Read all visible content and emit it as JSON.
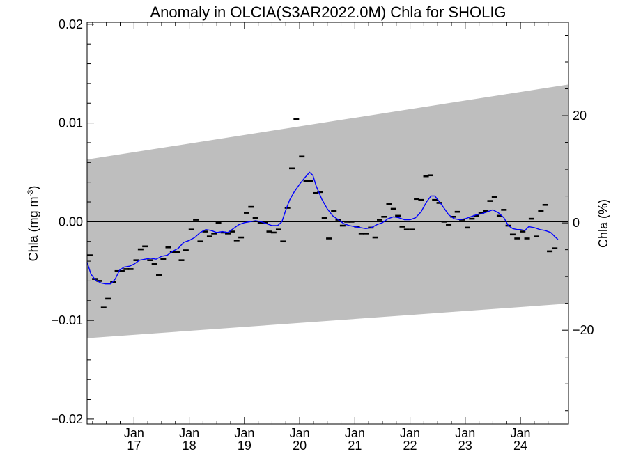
{
  "chart_data": {
    "type": "line",
    "title": "Anomaly in OLCIA(S3AR2022.0M) Chla for SHOLIG",
    "ylabel_left_main": "Chla (mg m",
    "ylabel_left_sup": "-3",
    "ylabel_left_close": ")",
    "ylabel_right": "Chla (%)",
    "xlim": [
      2016.15,
      2024.87
    ],
    "ylim": [
      -0.0205,
      0.0202
    ],
    "yticks": [
      -0.02,
      -0.01,
      0.0,
      0.01,
      0.02
    ],
    "ytick_labels": [
      "−0.02",
      "−0.01",
      "0.00",
      "0.01",
      "0.02"
    ],
    "yminor_step": 0.002,
    "right_axis_range": [
      -37.5,
      37.4
    ],
    "right_ticks": [
      -20,
      0,
      20
    ],
    "right_tick_labels": [
      "−20",
      "0",
      "20"
    ],
    "xticks": [
      {
        "x": 2017,
        "top": "Jan",
        "bottom": "17"
      },
      {
        "x": 2018,
        "top": "Jan",
        "bottom": "18"
      },
      {
        "x": 2019,
        "top": "Jan",
        "bottom": "19"
      },
      {
        "x": 2020,
        "top": "Jan",
        "bottom": "20"
      },
      {
        "x": 2021,
        "top": "Jan",
        "bottom": "21"
      },
      {
        "x": 2022,
        "top": "Jan",
        "bottom": "22"
      },
      {
        "x": 2023,
        "top": "Jan",
        "bottom": "23"
      },
      {
        "x": 2024,
        "top": "Jan",
        "bottom": "24"
      }
    ],
    "band": {
      "x": [
        2016.15,
        2024.87
      ],
      "upper": [
        0.0063,
        0.0139
      ],
      "lower": [
        -0.0118,
        -0.0083
      ],
      "color": "#bebebe"
    },
    "zero_line": 0.0,
    "series": [
      {
        "kind": "monthly",
        "color": "#000000",
        "points": [
          [
            2016.2,
            -0.0034
          ],
          [
            2016.29,
            -0.0058
          ],
          [
            2016.37,
            -0.006
          ],
          [
            2016.45,
            -0.0087
          ],
          [
            2016.53,
            -0.0078
          ],
          [
            2016.62,
            -0.0061
          ],
          [
            2016.7,
            -0.005
          ],
          [
            2016.78,
            -0.005
          ],
          [
            2016.86,
            -0.0048
          ],
          [
            2016.94,
            -0.0048
          ],
          [
            2017.04,
            -0.0039
          ],
          [
            2017.12,
            -0.0028
          ],
          [
            2017.2,
            -0.0025
          ],
          [
            2017.29,
            -0.0039
          ],
          [
            2017.37,
            -0.0043
          ],
          [
            2017.45,
            -0.0054
          ],
          [
            2017.53,
            -0.0038
          ],
          [
            2017.62,
            -0.0026
          ],
          [
            2017.7,
            -0.0031
          ],
          [
            2017.78,
            -0.0031
          ],
          [
            2017.86,
            -0.0039
          ],
          [
            2017.94,
            -0.0029
          ],
          [
            2018.04,
            -0.0008
          ],
          [
            2018.12,
            0.0002
          ],
          [
            2018.2,
            -0.002
          ],
          [
            2018.29,
            -0.001
          ],
          [
            2018.37,
            -0.0015
          ],
          [
            2018.45,
            -0.0012
          ],
          [
            2018.53,
            -0.0001
          ],
          [
            2018.62,
            -0.0011
          ],
          [
            2018.7,
            -0.0012
          ],
          [
            2018.78,
            -0.001
          ],
          [
            2018.86,
            -0.0019
          ],
          [
            2018.94,
            -0.0016
          ],
          [
            2019.04,
            0.0009
          ],
          [
            2019.12,
            0.0015
          ],
          [
            2019.2,
            0.0004
          ],
          [
            2019.29,
            -0.0001
          ],
          [
            2019.37,
            -0.0001
          ],
          [
            2019.45,
            -0.001
          ],
          [
            2019.53,
            -0.0011
          ],
          [
            2019.62,
            -0.0008
          ],
          [
            2019.7,
            -0.002
          ],
          [
            2019.78,
            0.0014
          ],
          [
            2019.86,
            0.0054
          ],
          [
            2019.94,
            0.0104
          ],
          [
            2020.04,
            0.0066
          ],
          [
            2020.12,
            0.0041
          ],
          [
            2020.2,
            0.0041
          ],
          [
            2020.29,
            0.0029
          ],
          [
            2020.37,
            0.003
          ],
          [
            2020.45,
            0.0004
          ],
          [
            2020.53,
            -0.0017
          ],
          [
            2020.62,
            0.0011
          ],
          [
            2020.7,
            0.0002
          ],
          [
            2020.78,
            -0.0004
          ],
          [
            2020.86,
            0.0
          ],
          [
            2020.94,
            0.0
          ],
          [
            2021.04,
            -0.0005
          ],
          [
            2021.12,
            -0.0012
          ],
          [
            2021.2,
            -0.0012
          ],
          [
            2021.29,
            -0.0006
          ],
          [
            2021.37,
            -0.0016
          ],
          [
            2021.45,
            0.0002
          ],
          [
            2021.53,
            0.0005
          ],
          [
            2021.62,
            0.0018
          ],
          [
            2021.7,
            0.0013
          ],
          [
            2021.78,
            0.0006
          ],
          [
            2021.86,
            -0.0005
          ],
          [
            2021.94,
            -0.0008
          ],
          [
            2022.04,
            -0.0008
          ],
          [
            2022.12,
            0.0023
          ],
          [
            2022.2,
            0.0022
          ],
          [
            2022.29,
            0.0046
          ],
          [
            2022.37,
            0.0047
          ],
          [
            2022.45,
            0.0022
          ],
          [
            2022.53,
            0.0019
          ],
          [
            2022.62,
            0.0
          ],
          [
            2022.7,
            -0.0003
          ],
          [
            2022.78,
            0.0005
          ],
          [
            2022.86,
            0.001
          ],
          [
            2022.94,
            0.0002
          ],
          [
            2023.04,
            -0.0006
          ],
          [
            2023.12,
            0.0003
          ],
          [
            2023.2,
            0.0006
          ],
          [
            2023.29,
            0.0009
          ],
          [
            2023.37,
            0.0011
          ],
          [
            2023.45,
            0.0021
          ],
          [
            2023.53,
            0.0025
          ],
          [
            2023.62,
            0.0006
          ],
          [
            2023.7,
            0.0012
          ],
          [
            2023.78,
            -0.0004
          ],
          [
            2023.86,
            -0.0013
          ],
          [
            2023.94,
            -0.0017
          ],
          [
            2024.04,
            -0.001
          ],
          [
            2024.12,
            -0.0017
          ],
          [
            2024.2,
            0.0003
          ],
          [
            2024.29,
            -0.0015
          ],
          [
            2024.37,
            0.0011
          ],
          [
            2024.45,
            0.0017
          ],
          [
            2024.53,
            -0.003
          ],
          [
            2024.62,
            -0.0027
          ]
        ]
      },
      {
        "kind": "smoothed",
        "color": "#0000ff",
        "points": [
          [
            2016.15,
            -0.0041
          ],
          [
            2016.22,
            -0.0053
          ],
          [
            2016.3,
            -0.0059
          ],
          [
            2016.4,
            -0.0062
          ],
          [
            2016.48,
            -0.0063
          ],
          [
            2016.58,
            -0.0063
          ],
          [
            2016.66,
            -0.0058
          ],
          [
            2016.74,
            -0.0049
          ],
          [
            2016.82,
            -0.0046
          ],
          [
            2016.92,
            -0.0045
          ],
          [
            2017.0,
            -0.0043
          ],
          [
            2017.1,
            -0.0039
          ],
          [
            2017.2,
            -0.0038
          ],
          [
            2017.3,
            -0.0037
          ],
          [
            2017.4,
            -0.0038
          ],
          [
            2017.5,
            -0.0035
          ],
          [
            2017.6,
            -0.0034
          ],
          [
            2017.7,
            -0.003
          ],
          [
            2017.8,
            -0.0027
          ],
          [
            2017.9,
            -0.0021
          ],
          [
            2018.0,
            -0.0019
          ],
          [
            2018.1,
            -0.0016
          ],
          [
            2018.2,
            -0.0011
          ],
          [
            2018.3,
            -0.0008
          ],
          [
            2018.4,
            -0.0009
          ],
          [
            2018.5,
            -0.0011
          ],
          [
            2018.6,
            -0.001
          ],
          [
            2018.7,
            -0.0011
          ],
          [
            2018.8,
            -0.0007
          ],
          [
            2018.9,
            -0.0003
          ],
          [
            2019.0,
            -0.0001
          ],
          [
            2019.1,
            0.0
          ],
          [
            2019.2,
            0.0001
          ],
          [
            2019.3,
            0.0
          ],
          [
            2019.4,
            -0.0002
          ],
          [
            2019.5,
            -0.0004
          ],
          [
            2019.6,
            -0.0004
          ],
          [
            2019.68,
            0.0
          ],
          [
            2019.75,
            0.0012
          ],
          [
            2019.82,
            0.0022
          ],
          [
            2019.9,
            0.003
          ],
          [
            2020.0,
            0.0038
          ],
          [
            2020.1,
            0.0045
          ],
          [
            2020.18,
            0.005
          ],
          [
            2020.24,
            0.0047
          ],
          [
            2020.3,
            0.0036
          ],
          [
            2020.4,
            0.0023
          ],
          [
            2020.5,
            0.0013
          ],
          [
            2020.6,
            0.0006
          ],
          [
            2020.7,
            0.0002
          ],
          [
            2020.8,
            -0.0002
          ],
          [
            2020.9,
            -0.0004
          ],
          [
            2021.0,
            -0.0005
          ],
          [
            2021.1,
            -0.0006
          ],
          [
            2021.2,
            -0.0007
          ],
          [
            2021.3,
            -0.0006
          ],
          [
            2021.4,
            -0.0003
          ],
          [
            2021.5,
            -0.0001
          ],
          [
            2021.6,
            0.0003
          ],
          [
            2021.7,
            0.0005
          ],
          [
            2021.8,
            0.0004
          ],
          [
            2021.9,
            0.0002
          ],
          [
            2022.0,
            0.0002
          ],
          [
            2022.1,
            0.0004
          ],
          [
            2022.2,
            0.001
          ],
          [
            2022.3,
            0.002
          ],
          [
            2022.38,
            0.0026
          ],
          [
            2022.45,
            0.0026
          ],
          [
            2022.52,
            0.0021
          ],
          [
            2022.6,
            0.0015
          ],
          [
            2022.7,
            0.0007
          ],
          [
            2022.8,
            0.0003
          ],
          [
            2022.9,
            0.0002
          ],
          [
            2023.0,
            0.0003
          ],
          [
            2023.1,
            0.0005
          ],
          [
            2023.2,
            0.0007
          ],
          [
            2023.3,
            0.0008
          ],
          [
            2023.4,
            0.001
          ],
          [
            2023.5,
            0.0012
          ],
          [
            2023.6,
            0.0009
          ],
          [
            2023.7,
            0.0004
          ],
          [
            2023.78,
            -0.0004
          ],
          [
            2023.86,
            -0.0007
          ],
          [
            2023.94,
            -0.0008
          ],
          [
            2024.0,
            -0.0008
          ],
          [
            2024.08,
            -0.0009
          ],
          [
            2024.15,
            -0.0005
          ],
          [
            2024.25,
            -0.0006
          ],
          [
            2024.35,
            -0.0008
          ],
          [
            2024.45,
            -0.0009
          ],
          [
            2024.55,
            -0.0011
          ],
          [
            2024.62,
            -0.0015
          ],
          [
            2024.68,
            -0.0018
          ]
        ]
      }
    ]
  }
}
